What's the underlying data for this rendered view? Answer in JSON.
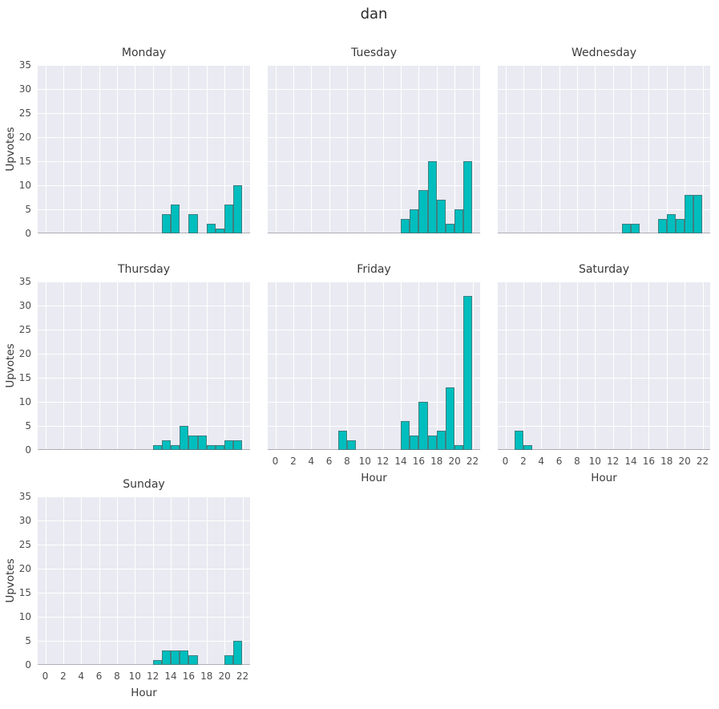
{
  "title": "dan",
  "colors": {
    "bar_fill": "#00BEBE",
    "bar_edge": "rgba(90,100,100,0.7)",
    "axes_bg": "#EAEAF2",
    "grid_line": "#FFFFFF",
    "baseline": "#AFAFB8",
    "title_text": "#2B2B2B",
    "tick_text": "#4D4D4D",
    "label_text": "#3A3A3A"
  },
  "chart_data": {
    "type": "bar",
    "subtype": "histogram-facet-grid",
    "title": "dan",
    "xlabel": "Hour",
    "ylabel": "Upvotes",
    "x_ticks": [
      0,
      2,
      4,
      6,
      8,
      10,
      12,
      14,
      16,
      18,
      20,
      22
    ],
    "y_ticks": [
      0,
      5,
      10,
      15,
      20,
      25,
      30,
      35
    ],
    "xlim": [
      -0.85,
      22.85
    ],
    "ylim": [
      0,
      35
    ],
    "grid": true,
    "legend": false,
    "facets": [
      {
        "title": "Monday",
        "row": 0,
        "col": 0,
        "bars": [
          {
            "hour": 13,
            "upvotes": 4
          },
          {
            "hour": 14,
            "upvotes": 6
          },
          {
            "hour": 16,
            "upvotes": 4
          },
          {
            "hour": 18,
            "upvotes": 2
          },
          {
            "hour": 19,
            "upvotes": 1
          },
          {
            "hour": 20,
            "upvotes": 6
          },
          {
            "hour": 21,
            "upvotes": 10
          }
        ]
      },
      {
        "title": "Tuesday",
        "row": 0,
        "col": 1,
        "bars": [
          {
            "hour": 14,
            "upvotes": 3
          },
          {
            "hour": 15,
            "upvotes": 5
          },
          {
            "hour": 16,
            "upvotes": 9
          },
          {
            "hour": 17,
            "upvotes": 15
          },
          {
            "hour": 18,
            "upvotes": 7
          },
          {
            "hour": 19,
            "upvotes": 2
          },
          {
            "hour": 20,
            "upvotes": 5
          },
          {
            "hour": 21,
            "upvotes": 15
          }
        ]
      },
      {
        "title": "Wednesday",
        "row": 0,
        "col": 2,
        "bars": [
          {
            "hour": 13,
            "upvotes": 2
          },
          {
            "hour": 14,
            "upvotes": 2
          },
          {
            "hour": 17,
            "upvotes": 3
          },
          {
            "hour": 18,
            "upvotes": 4
          },
          {
            "hour": 19,
            "upvotes": 3
          },
          {
            "hour": 20,
            "upvotes": 8
          },
          {
            "hour": 21,
            "upvotes": 8
          }
        ]
      },
      {
        "title": "Thursday",
        "row": 1,
        "col": 0,
        "bars": [
          {
            "hour": 12,
            "upvotes": 1
          },
          {
            "hour": 13,
            "upvotes": 2
          },
          {
            "hour": 14,
            "upvotes": 1
          },
          {
            "hour": 15,
            "upvotes": 5
          },
          {
            "hour": 16,
            "upvotes": 3
          },
          {
            "hour": 17,
            "upvotes": 3
          },
          {
            "hour": 18,
            "upvotes": 1
          },
          {
            "hour": 19,
            "upvotes": 1
          },
          {
            "hour": 20,
            "upvotes": 2
          },
          {
            "hour": 21,
            "upvotes": 2
          }
        ]
      },
      {
        "title": "Friday",
        "row": 1,
        "col": 1,
        "bars": [
          {
            "hour": 7,
            "upvotes": 4
          },
          {
            "hour": 8,
            "upvotes": 2
          },
          {
            "hour": 14,
            "upvotes": 6
          },
          {
            "hour": 15,
            "upvotes": 3
          },
          {
            "hour": 16,
            "upvotes": 10
          },
          {
            "hour": 17,
            "upvotes": 3
          },
          {
            "hour": 18,
            "upvotes": 4
          },
          {
            "hour": 19,
            "upvotes": 13
          },
          {
            "hour": 20,
            "upvotes": 1
          },
          {
            "hour": 21,
            "upvotes": 32
          }
        ]
      },
      {
        "title": "Saturday",
        "row": 1,
        "col": 2,
        "bars": [
          {
            "hour": 1,
            "upvotes": 4
          },
          {
            "hour": 2,
            "upvotes": 1
          }
        ]
      },
      {
        "title": "Sunday",
        "row": 2,
        "col": 0,
        "bars": [
          {
            "hour": 12,
            "upvotes": 1
          },
          {
            "hour": 13,
            "upvotes": 3
          },
          {
            "hour": 14,
            "upvotes": 3
          },
          {
            "hour": 15,
            "upvotes": 3
          },
          {
            "hour": 16,
            "upvotes": 2
          },
          {
            "hour": 20,
            "upvotes": 2
          },
          {
            "hour": 21,
            "upvotes": 5
          }
        ]
      }
    ]
  }
}
